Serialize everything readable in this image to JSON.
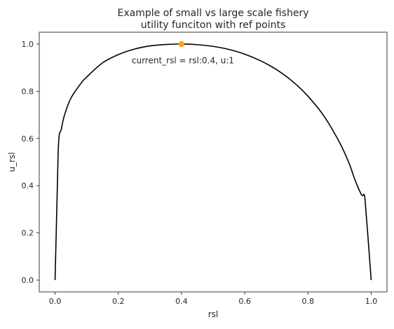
{
  "chart_data": {
    "type": "line",
    "title": "Example of small vs large scale fishery\nutility funciton with ref points",
    "xlabel": "rsl",
    "ylabel": "u_rsl",
    "xlim": [
      -0.05,
      1.05
    ],
    "ylim": [
      -0.05,
      1.05
    ],
    "xticks": [
      0.0,
      0.2,
      0.4,
      0.6,
      0.8,
      1.0
    ],
    "xtick_labels": [
      "0.0",
      "0.2",
      "0.4",
      "0.6",
      "0.8",
      "1.0"
    ],
    "yticks": [
      0.0,
      0.2,
      0.4,
      0.6,
      0.8,
      1.0
    ],
    "ytick_labels": [
      "0.0",
      "0.2",
      "0.4",
      "0.6",
      "0.8",
      "1.0"
    ],
    "grid": false,
    "series": [
      {
        "color": "#000000",
        "x": [
          0.0,
          0.01,
          0.02,
          0.03,
          0.05,
          0.08,
          0.1,
          0.15,
          0.2,
          0.25,
          0.3,
          0.35,
          0.4,
          0.45,
          0.5,
          0.55,
          0.6,
          0.65,
          0.7,
          0.75,
          0.8,
          0.85,
          0.9,
          0.93,
          0.95,
          0.97,
          0.98,
          0.99,
          1.0
        ],
        "y": [
          0.0,
          0.55,
          0.64,
          0.7,
          0.77,
          0.83,
          0.86,
          0.92,
          0.955,
          0.978,
          0.992,
          0.998,
          1.0,
          0.997,
          0.99,
          0.977,
          0.957,
          0.929,
          0.892,
          0.843,
          0.779,
          0.696,
          0.583,
          0.495,
          0.42,
          0.36,
          0.35,
          0.18,
          0.0
        ]
      }
    ],
    "points": [
      {
        "x": 0.4,
        "y": 1.0,
        "color": "#ffa500"
      }
    ],
    "annotations": [
      {
        "text": "current_rsl = rsl:0.4, u:1",
        "x": 0.4,
        "y": 0.93
      }
    ]
  }
}
